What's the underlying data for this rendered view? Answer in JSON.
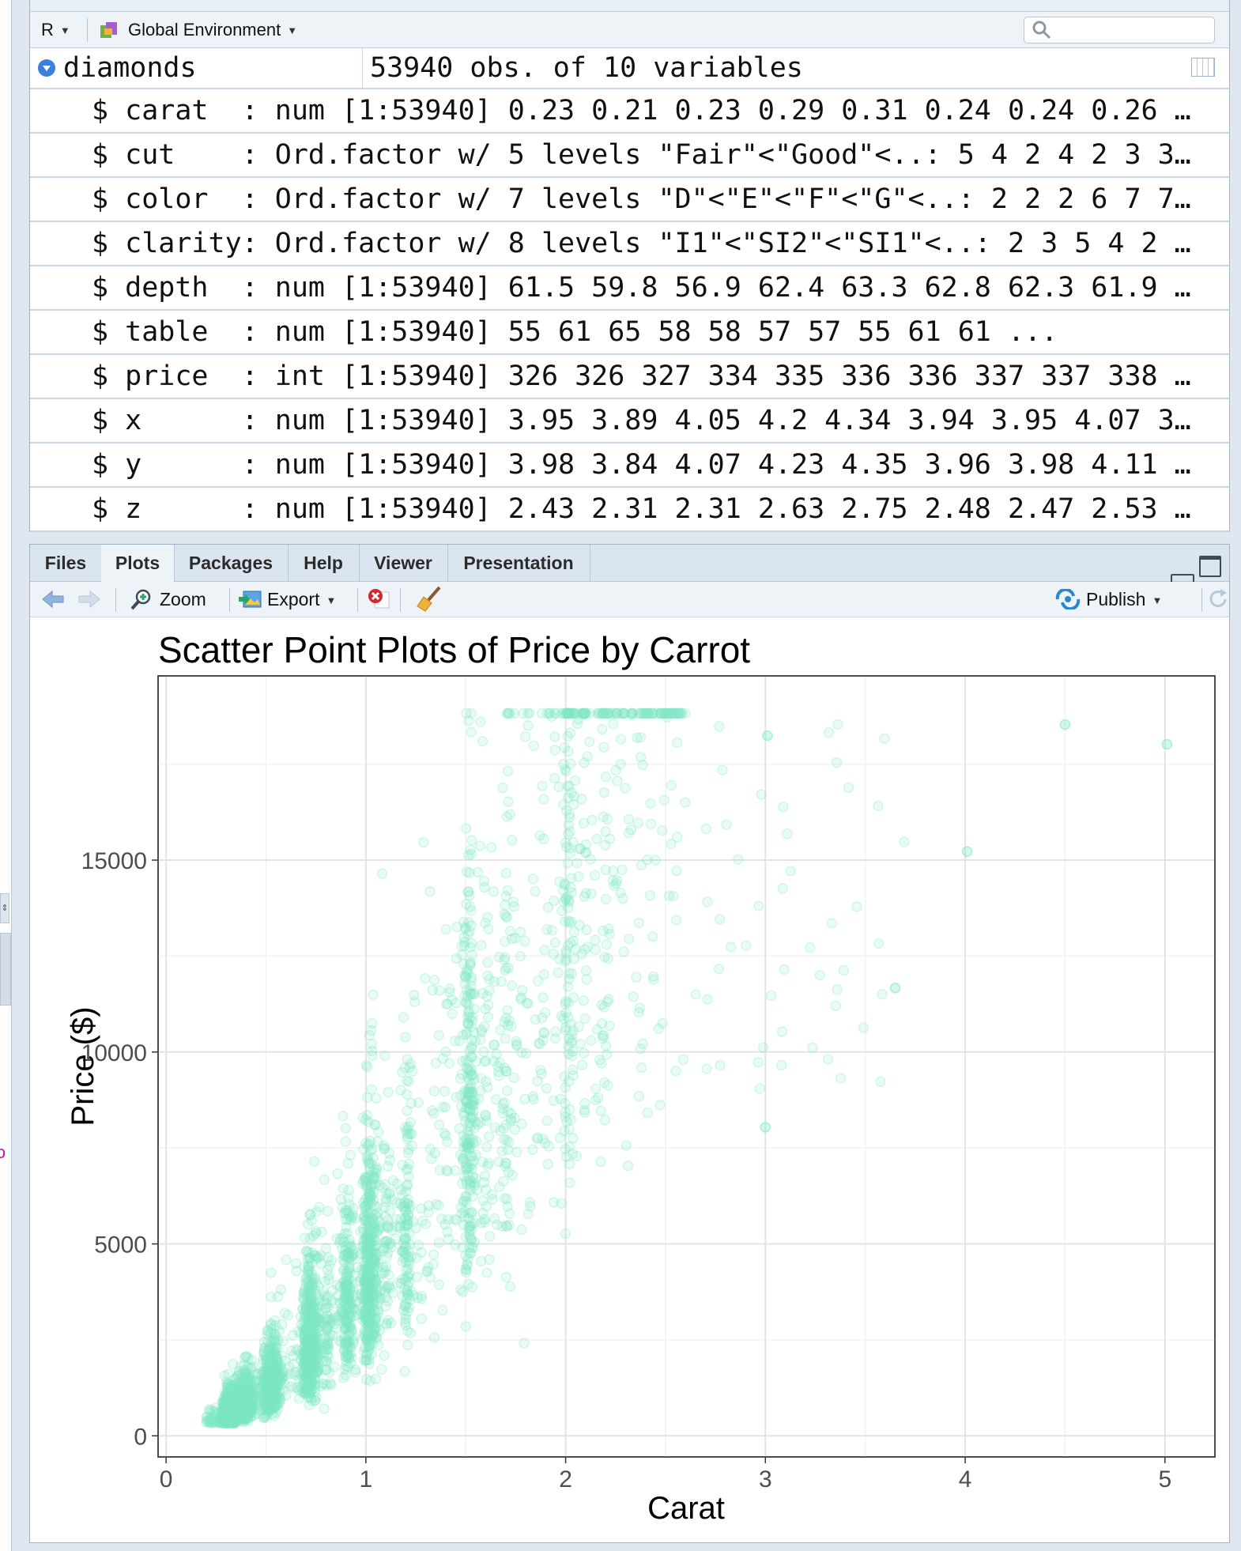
{
  "environment": {
    "toolbar": {
      "language": "R",
      "scope": "Global Environment",
      "search_placeholder": ""
    },
    "dataset": {
      "name": "diamonds",
      "summary": "53940 obs. of 10 variables",
      "variables": [
        {
          "text": "$ carat  : num [1:53940] 0.23 0.21 0.23 0.29 0.31 0.24 0.24 0.26 …"
        },
        {
          "text": "$ cut    : Ord.factor w/ 5 levels \"Fair\"<\"Good\"<..: 5 4 2 4 2 3 3…"
        },
        {
          "text": "$ color  : Ord.factor w/ 7 levels \"D\"<\"E\"<\"F\"<\"G\"<..: 2 2 2 6 7 7…"
        },
        {
          "text": "$ clarity: Ord.factor w/ 8 levels \"I1\"<\"SI2\"<\"SI1\"<..: 2 3 5 4 2 …"
        },
        {
          "text": "$ depth  : num [1:53940] 61.5 59.8 56.9 62.4 63.3 62.8 62.3 61.9 …"
        },
        {
          "text": "$ table  : num [1:53940] 55 61 65 58 58 57 57 55 61 61 ..."
        },
        {
          "text": "$ price  : int [1:53940] 326 326 327 334 335 336 336 337 337 338 …"
        },
        {
          "text": "$ x      : num [1:53940] 3.95 3.89 4.05 4.2 4.34 3.94 3.95 4.07 3…"
        },
        {
          "text": "$ y      : num [1:53940] 3.98 3.84 4.07 4.23 4.35 3.96 3.98 4.11 …"
        },
        {
          "text": "$ z      : num [1:53940] 2.43 2.31 2.31 2.63 2.75 2.48 2.47 2.53 …"
        }
      ]
    }
  },
  "plots_pane": {
    "tabs": [
      {
        "label": "Files",
        "active": false
      },
      {
        "label": "Plots",
        "active": true
      },
      {
        "label": "Packages",
        "active": false
      },
      {
        "label": "Help",
        "active": false
      },
      {
        "label": "Viewer",
        "active": false
      },
      {
        "label": "Presentation",
        "active": false
      }
    ],
    "toolbar": {
      "zoom_label": "Zoom",
      "export_label": "Export",
      "publish_label": "Publish"
    }
  },
  "chart_data": {
    "type": "scatter",
    "title": "Scatter Point Plots of Price by Carrot",
    "xlabel": "Carat",
    "ylabel": "Price ($)",
    "xlim": [
      -0.04,
      5.25
    ],
    "ylim": [
      -550,
      19800
    ],
    "xticks": [
      0,
      1,
      2,
      3,
      4,
      5
    ],
    "yticks": [
      0,
      5000,
      10000,
      15000
    ],
    "grid": true,
    "point_color": "#7fe8c5",
    "point_alpha": 0.18,
    "n_points": 53940,
    "notable_outliers": [
      {
        "x": 3.01,
        "y": 18242
      },
      {
        "x": 4.01,
        "y": 15223
      },
      {
        "x": 4.5,
        "y": 18531
      },
      {
        "x": 5.01,
        "y": 18018
      },
      {
        "x": 3.65,
        "y": 11668
      },
      {
        "x": 3.0,
        "y": 8040
      }
    ]
  }
}
